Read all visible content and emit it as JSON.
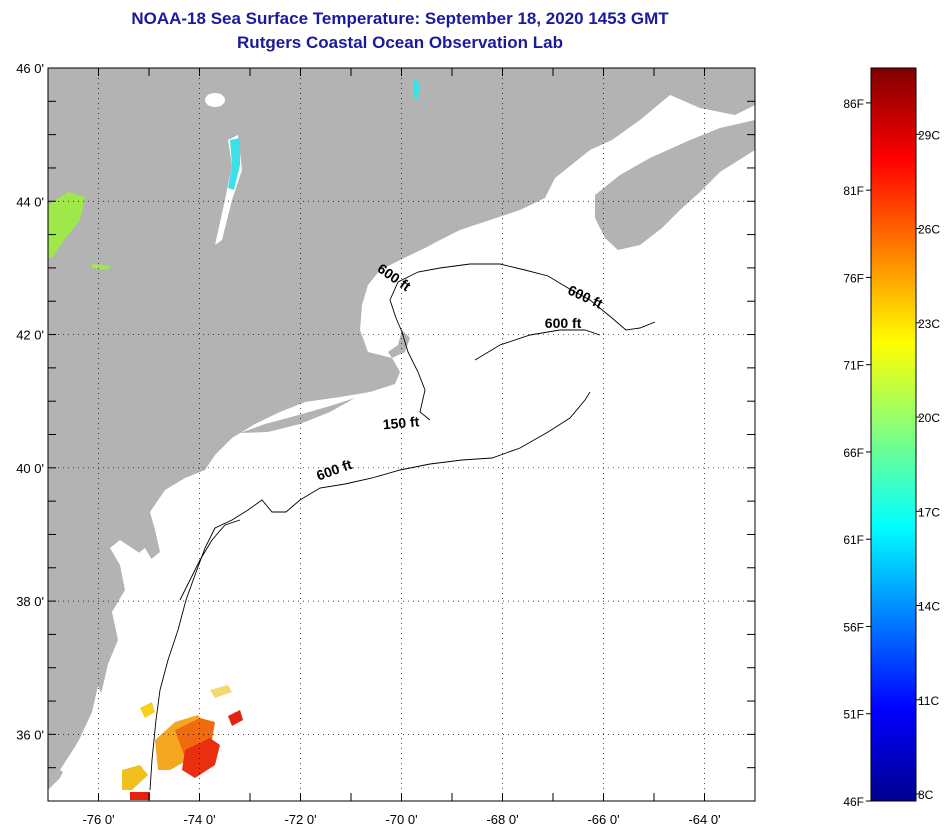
{
  "header": {
    "title": "NOAA-18 Sea Surface Temperature:  September 18, 2020 1453 GMT",
    "subtitle": "Rutgers Coastal Ocean Observation Lab"
  },
  "map": {
    "lon_range": [
      -77,
      -63
    ],
    "lat_range": [
      35,
      46
    ],
    "x_ticks": [
      -76,
      -74,
      -72,
      -70,
      -68,
      -66,
      -64
    ],
    "y_ticks": [
      36,
      38,
      40,
      42,
      44,
      46
    ],
    "x_labels": [
      "-76 0'",
      "-74 0'",
      "-72 0'",
      "-70 0'",
      "-68 0'",
      "-66 0'",
      "-64 0'"
    ],
    "y_labels": [
      "36 0'",
      "38 0'",
      "40 0'",
      "42 0'",
      "44 0'",
      "46 0'"
    ],
    "land_color": "#b3b3b3",
    "ocean_color": "#ffffff",
    "contour_labels": [
      {
        "text": "600 ft",
        "lon": -70.2,
        "lat": 42.8,
        "angle": 35
      },
      {
        "text": "600 ft",
        "lon": -66.4,
        "lat": 42.5,
        "angle": 25
      },
      {
        "text": "600 ft",
        "lon": -66.8,
        "lat": 42.1,
        "angle": 0
      },
      {
        "text": "150 ft",
        "lon": -70.0,
        "lat": 40.6,
        "angle": -5
      },
      {
        "text": "600 ft",
        "lon": -71.3,
        "lat": 39.9,
        "angle": -20
      }
    ]
  },
  "colorbar": {
    "min_label": "46F",
    "bottom_c_label": "8C",
    "f_labels": [
      "86F",
      "81F",
      "76F",
      "71F",
      "66F",
      "61F",
      "56F",
      "51F",
      "46F"
    ],
    "f_values": [
      86,
      81,
      76,
      71,
      66,
      61,
      56,
      51,
      46
    ],
    "c_labels": [
      "29C",
      "26C",
      "23C",
      "20C",
      "17C",
      "14C",
      "11C",
      "8C"
    ],
    "c_values": [
      29,
      26,
      23,
      20,
      17,
      14,
      11,
      8
    ],
    "range_f": [
      46,
      88
    ],
    "stops": [
      "#00008f",
      "#0000ff",
      "#0080ff",
      "#00ffff",
      "#80ff80",
      "#ffff00",
      "#ff8000",
      "#ff0000",
      "#800000"
    ]
  }
}
